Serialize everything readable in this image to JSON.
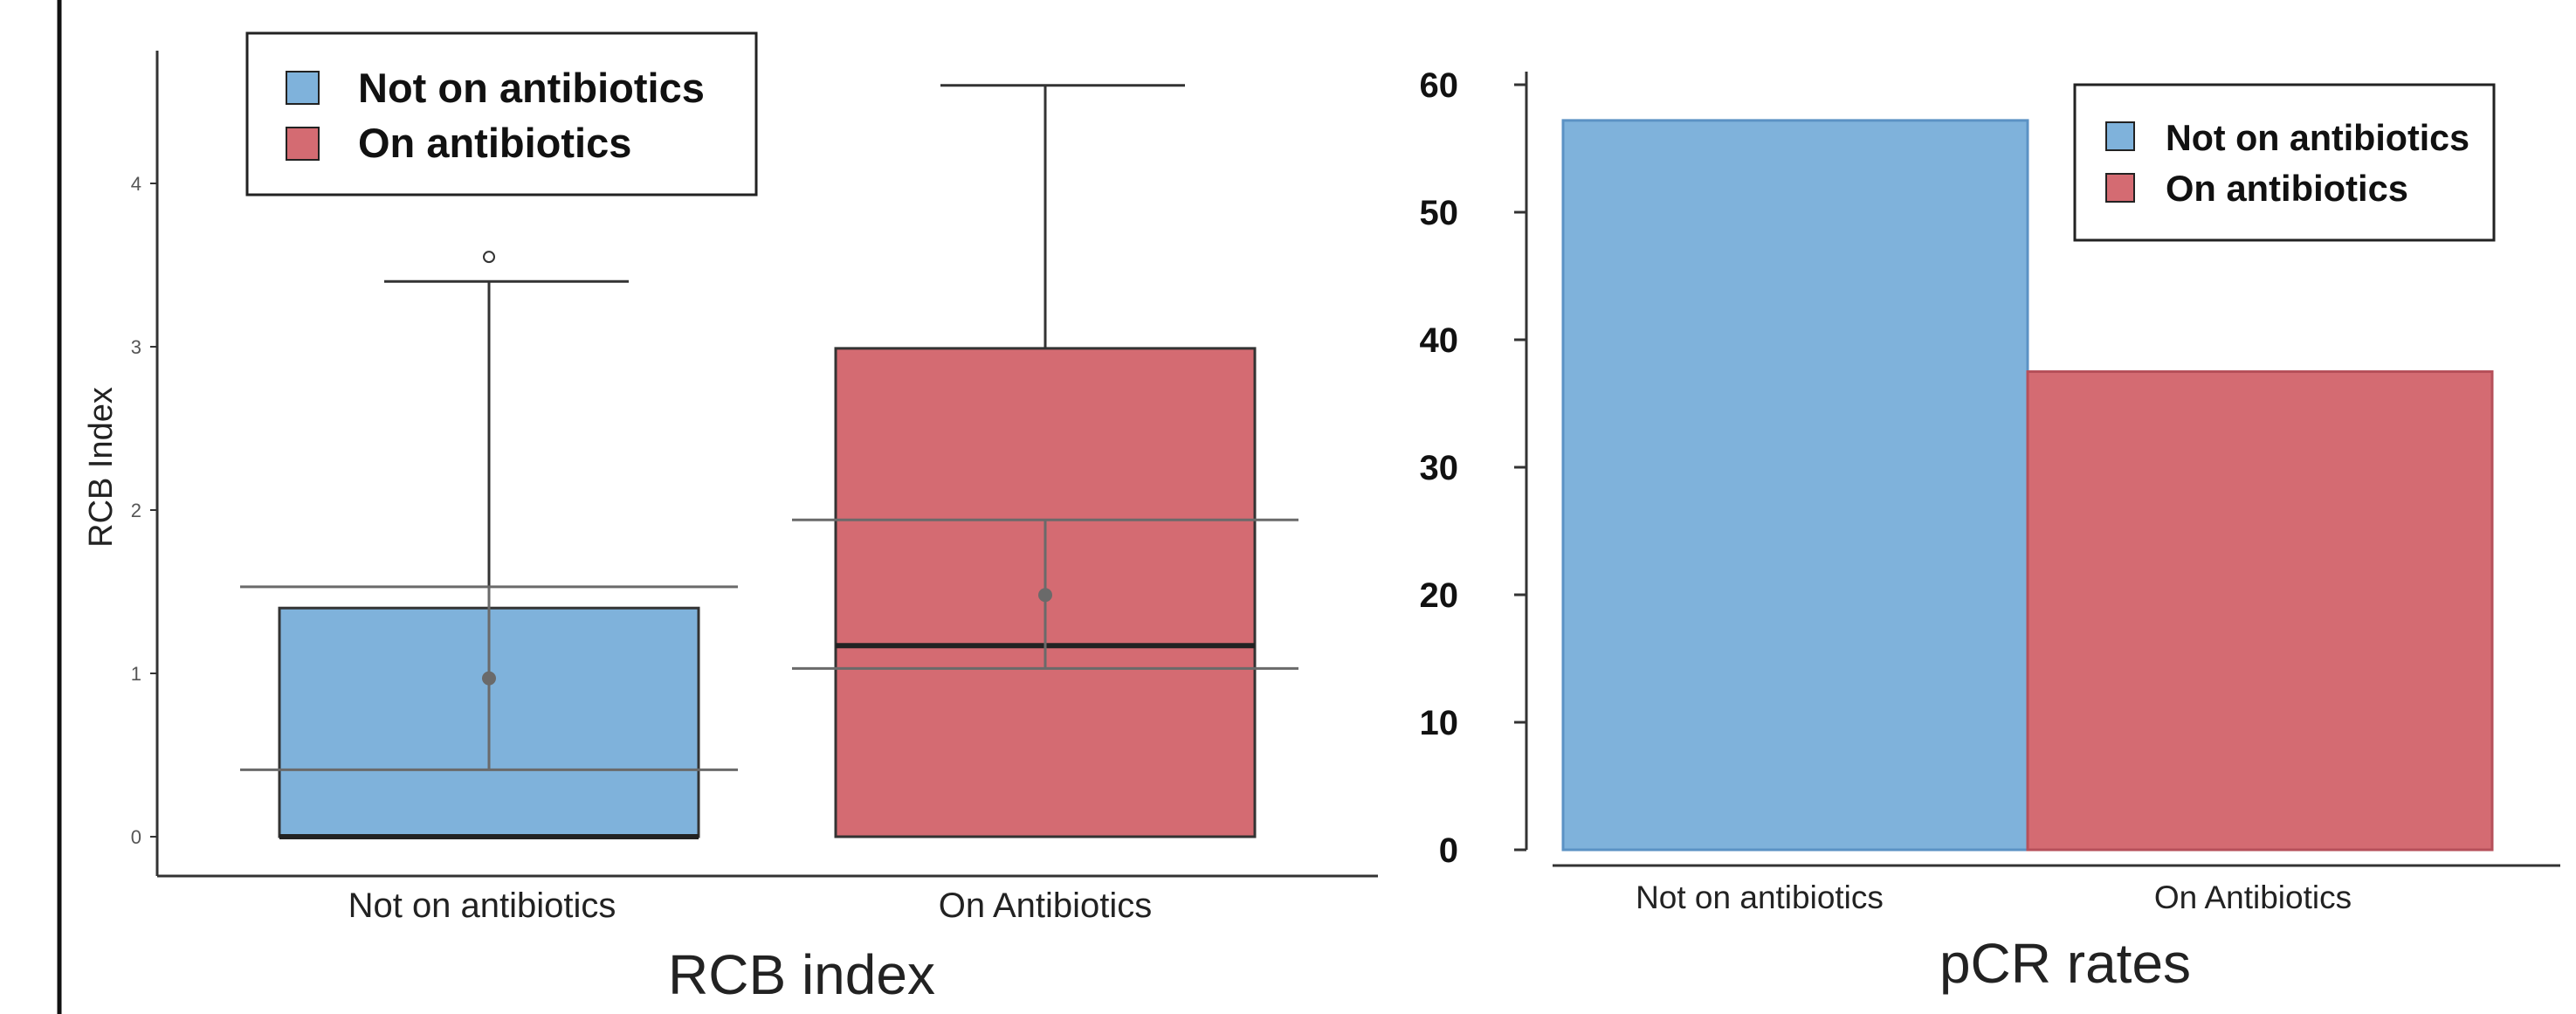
{
  "colors": {
    "not_on": "#7fb2db",
    "on": "#d46b72",
    "overlay": "#6a6a6a"
  },
  "chart_data": [
    {
      "type": "box",
      "title": "RCB index",
      "xlabel": "",
      "ylabel": "RCB Index",
      "ylim": [
        0,
        4.6
      ],
      "yticks": [
        0,
        1,
        2,
        3,
        4
      ],
      "categories": [
        "Not on antibiotics",
        "On Antibiotics"
      ],
      "legend": {
        "position": "top-left",
        "entries": [
          "Not on antibiotics",
          "On antibiotics"
        ]
      },
      "boxes": [
        {
          "min": 0,
          "q1": 0,
          "median": 0,
          "q3": 1.4,
          "max": 3.4,
          "outliers": [
            3.55
          ],
          "mean": 0.97,
          "ci_low": 0.41,
          "ci_high": 1.53
        },
        {
          "min": 0,
          "q1": 0,
          "median": 1.17,
          "q3": 2.99,
          "max": 4.6,
          "outliers": [],
          "mean": 1.48,
          "ci_low": 1.03,
          "ci_high": 1.94
        }
      ]
    },
    {
      "type": "bar",
      "title": "pCR rates",
      "xlabel": "",
      "ylabel": "",
      "ylim": [
        0,
        60
      ],
      "yticks": [
        0,
        10,
        20,
        30,
        40,
        50,
        60
      ],
      "categories": [
        "Not on antibiotics",
        "On Antibiotics"
      ],
      "values": [
        57.2,
        37.5
      ],
      "legend": {
        "position": "top-right",
        "entries": [
          "Not on antibiotics",
          "On antibiotics"
        ]
      }
    }
  ]
}
